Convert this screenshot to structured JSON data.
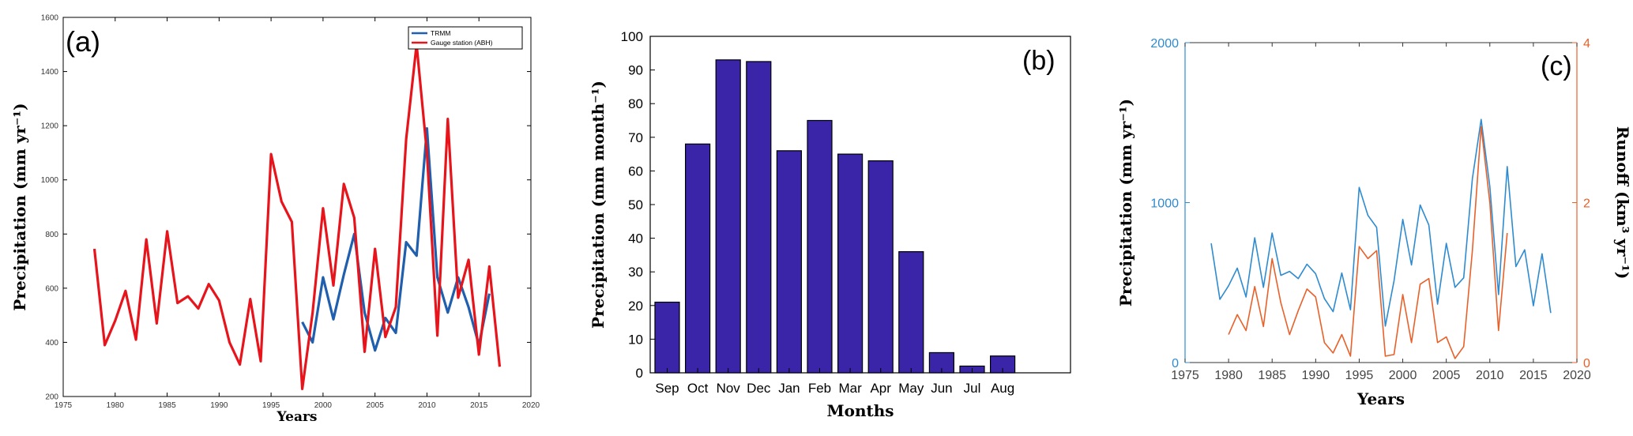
{
  "chart_data": [
    {
      "panel_label": "(a)",
      "type": "line",
      "xlabel": "Years",
      "ylabel": "Precipitation (mm yr⁻¹)",
      "xlim": [
        1975,
        2020
      ],
      "ylim": [
        200,
        1600
      ],
      "xticks": [
        1975,
        1980,
        1985,
        1990,
        1995,
        2000,
        2005,
        2010,
        2015,
        2020
      ],
      "yticks": [
        200,
        400,
        600,
        800,
        1000,
        1200,
        1400,
        1600
      ],
      "legend_position": "top-right",
      "series": [
        {
          "name": "TRMM",
          "color": "#1f5fae",
          "x": [
            1998,
            1999,
            2000,
            2001,
            2002,
            2003,
            2004,
            2005,
            2006,
            2007,
            2008,
            2009,
            2010,
            2011,
            2012,
            2013,
            2014,
            2015,
            2016
          ],
          "values": [
            475,
            400,
            640,
            485,
            650,
            800,
            510,
            370,
            490,
            435,
            770,
            720,
            1190,
            640,
            510,
            640,
            530,
            390,
            580
          ]
        },
        {
          "name": "Gauge station (ABH)",
          "color": "#e8141b",
          "x": [
            1978,
            1979,
            1980,
            1981,
            1982,
            1983,
            1984,
            1985,
            1986,
            1987,
            1988,
            1989,
            1990,
            1991,
            1992,
            1993,
            1994,
            1995,
            1996,
            1997,
            1998,
            1999,
            2000,
            2001,
            2002,
            2003,
            2004,
            2005,
            2006,
            2007,
            2008,
            2009,
            2010,
            2011,
            2012,
            2013,
            2014,
            2015,
            2016,
            2017
          ],
          "values": [
            745,
            390,
            480,
            590,
            410,
            780,
            470,
            810,
            545,
            570,
            525,
            615,
            555,
            400,
            318,
            560,
            330,
            1095,
            920,
            845,
            228,
            510,
            895,
            610,
            985,
            860,
            365,
            745,
            420,
            530,
            1150,
            1500,
            1100,
            425,
            1225,
            565,
            705,
            355,
            680,
            310
          ]
        }
      ]
    },
    {
      "panel_label": "(b)",
      "type": "bar",
      "xlabel": "Months",
      "ylabel": "Precipitation (mm month⁻¹)",
      "ylim": [
        0,
        100
      ],
      "yticks": [
        0,
        10,
        20,
        30,
        40,
        50,
        60,
        70,
        80,
        90,
        100
      ],
      "bar_color": "#3a24a8",
      "categories": [
        "Sep",
        "Oct",
        "Nov",
        "Dec",
        "Jan",
        "Feb",
        "Mar",
        "Apr",
        "May",
        "Jun",
        "Jul",
        "Aug"
      ],
      "values": [
        21,
        68,
        93,
        92.5,
        66,
        75,
        65,
        63,
        36,
        6,
        2,
        5
      ]
    },
    {
      "panel_label": "(c)",
      "type": "line",
      "xlabel": "Years",
      "ylabel": "Precipitation (mm yr⁻¹)",
      "y2label": "Runoff (km³ yr⁻¹)",
      "xlim": [
        1975,
        2020
      ],
      "ylim": [
        0,
        2000
      ],
      "y2lim": [
        0,
        4
      ],
      "xticks": [
        1975,
        1980,
        1985,
        1990,
        1995,
        2000,
        2005,
        2010,
        2015,
        2020
      ],
      "yticks": [
        0,
        1000,
        2000
      ],
      "y2ticks": [
        0,
        2,
        4
      ],
      "left_axis_color": "#2e8bd0",
      "right_axis_color": "#e8612a",
      "series": [
        {
          "name": "Precipitation",
          "axis": "left",
          "color": "#2e8bd0",
          "x": [
            1978,
            1979,
            1980,
            1981,
            1982,
            1983,
            1984,
            1985,
            1986,
            1987,
            1988,
            1989,
            1990,
            1991,
            1992,
            1993,
            1994,
            1995,
            1996,
            1997,
            1998,
            1999,
            2000,
            2001,
            2002,
            2003,
            2004,
            2005,
            2006,
            2007,
            2008,
            2009,
            2010,
            2011,
            2012,
            2013,
            2014,
            2015,
            2016,
            2017
          ],
          "values": [
            745,
            395,
            480,
            590,
            410,
            780,
            470,
            810,
            545,
            570,
            525,
            615,
            555,
            400,
            318,
            560,
            330,
            1095,
            920,
            845,
            228,
            510,
            895,
            610,
            985,
            860,
            365,
            745,
            470,
            530,
            1150,
            1520,
            1100,
            425,
            1225,
            600,
            705,
            355,
            680,
            310
          ]
        },
        {
          "name": "Runoff",
          "axis": "right",
          "color": "#e8612a",
          "x": [
            1980,
            1981,
            1982,
            1983,
            1984,
            1985,
            1986,
            1987,
            1988,
            1989,
            1990,
            1991,
            1992,
            1993,
            1994,
            1995,
            1996,
            1997,
            1998,
            1999,
            2000,
            2001,
            2002,
            2003,
            2004,
            2005,
            2006,
            2007,
            2008,
            2009,
            2010,
            2011,
            2012
          ],
          "values": [
            0.35,
            0.6,
            0.4,
            0.95,
            0.45,
            1.3,
            0.75,
            0.35,
            0.65,
            0.92,
            0.82,
            0.25,
            0.12,
            0.35,
            0.08,
            1.45,
            1.3,
            1.4,
            0.08,
            0.1,
            0.85,
            0.25,
            0.98,
            1.05,
            0.25,
            0.32,
            0.05,
            0.2,
            1.4,
            2.95,
            2.0,
            0.4,
            1.62
          ]
        }
      ]
    }
  ]
}
